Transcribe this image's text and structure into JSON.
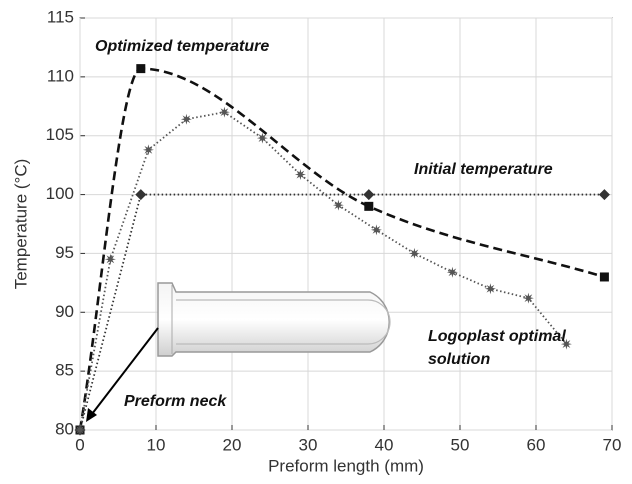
{
  "chart_data": {
    "type": "line",
    "x_label": "Preform length (mm)",
    "y_label": "Temperature (°C)",
    "xlim": [
      0,
      70
    ],
    "xticks": [
      0,
      10,
      20,
      30,
      40,
      50,
      60,
      70
    ],
    "ylim": [
      80,
      115
    ],
    "yticks": [
      80,
      85,
      90,
      95,
      100,
      105,
      110,
      115
    ],
    "grid": true,
    "series": [
      {
        "color": "#111111",
        "dash": "dashed",
        "marker": "square",
        "smooth": true,
        "x": [
          0,
          8,
          38,
          69
        ],
        "values": [
          80,
          110.7,
          99,
          93
        ]
      },
      {
        "color": "#333333",
        "dash": "dotted",
        "marker": "diamond",
        "smooth": false,
        "x": [
          0,
          8,
          38,
          69
        ],
        "values": [
          80,
          100,
          100,
          100
        ]
      },
      {
        "color": "#555555",
        "dash": "dotted",
        "marker": "star",
        "smooth": false,
        "x": [
          0,
          4,
          9,
          14,
          19,
          24,
          29,
          34,
          39,
          44,
          49,
          54,
          59,
          64
        ],
        "values": [
          80,
          94.5,
          103.8,
          106.4,
          107,
          104.8,
          101.7,
          99.1,
          97,
          95,
          93.4,
          92,
          91.2,
          87.3
        ]
      }
    ],
    "annotations": [
      "Optimized temperature",
      "Initial temperature",
      "Logoplast optimal",
      "solution",
      "Preform neck"
    ]
  }
}
